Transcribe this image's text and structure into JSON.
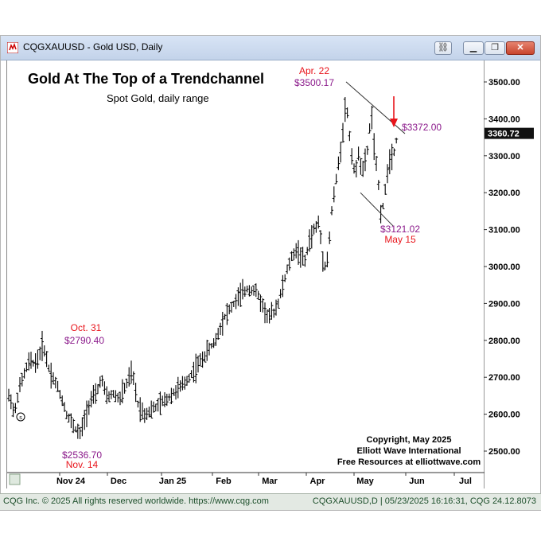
{
  "window": {
    "title": "CQGXAUUSD - Gold USD, Daily",
    "buttons": [
      "link-icon",
      "minimize-icon",
      "restore-icon",
      "close-icon"
    ]
  },
  "status": {
    "left": "CQG Inc. © 2025 All rights reserved worldwide. https://www.cqg.com",
    "right": "CQGXAUUSD,D | 05/23/2025 16:16:31, CQG 24.12.8073"
  },
  "chart_data": {
    "type": "ohlc",
    "title": "Gold At The Top of a Trendchannel",
    "subtitle": "Spot Gold, daily range",
    "ylim": [
      2450,
      3540
    ],
    "y_ticks": [
      "3500.00",
      "3400.00",
      "3300.00",
      "3200.00",
      "3100.00",
      "3000.00",
      "2900.00",
      "2800.00",
      "2700.00",
      "2600.00",
      "2500.00"
    ],
    "x_labels": [
      "Nov 24",
      "Dec",
      "Jan 25",
      "Feb",
      "Mar",
      "Apr",
      "May",
      "Jun",
      "Jul"
    ],
    "last_price": "3360.72",
    "annotations": {
      "oct_date": "Oct. 31",
      "oct_price": "$2790.40",
      "nov_price": "$2536.70",
      "nov_date": "Nov. 14",
      "apr_date": "Apr. 22",
      "apr_price": "$3500.17",
      "may_price": "$3121.02",
      "may_date": "May 15",
      "target_price": "$3372.00"
    },
    "copyright": [
      "Copyright, May 2025",
      "Elliott Wave International",
      "Free Resources at elliottwave.com"
    ],
    "colors": {
      "red": "#e8141b",
      "purple": "#8b1a8b",
      "bars": "#000000",
      "channel": "#333333"
    },
    "waypoints": [
      [
        0,
        2645
      ],
      [
        4,
        2650
      ],
      [
        9,
        2595
      ],
      [
        14,
        2660
      ],
      [
        20,
        2700
      ],
      [
        27,
        2740
      ],
      [
        37,
        2740
      ],
      [
        45,
        2790
      ],
      [
        53,
        2720
      ],
      [
        62,
        2680
      ],
      [
        69,
        2640
      ],
      [
        75,
        2600
      ],
      [
        80,
        2580
      ],
      [
        86,
        2560
      ],
      [
        92,
        2545
      ],
      [
        99,
        2600
      ],
      [
        105,
        2640
      ],
      [
        112,
        2650
      ],
      [
        118,
        2700
      ],
      [
        125,
        2645
      ],
      [
        134,
        2655
      ],
      [
        141,
        2640
      ],
      [
        150,
        2680
      ],
      [
        157,
        2715
      ],
      [
        164,
        2630
      ],
      [
        172,
        2600
      ],
      [
        180,
        2610
      ],
      [
        188,
        2620
      ],
      [
        200,
        2640
      ],
      [
        210,
        2660
      ],
      [
        222,
        2680
      ],
      [
        232,
        2710
      ],
      [
        242,
        2740
      ],
      [
        252,
        2770
      ],
      [
        262,
        2800
      ],
      [
        272,
        2860
      ],
      [
        282,
        2890
      ],
      [
        292,
        2920
      ],
      [
        302,
        2940
      ],
      [
        312,
        2935
      ],
      [
        320,
        2900
      ],
      [
        328,
        2860
      ],
      [
        336,
        2880
      ],
      [
        342,
        2910
      ],
      [
        348,
        2960
      ],
      [
        355,
        3010
      ],
      [
        362,
        3045
      ],
      [
        368,
        3035
      ],
      [
        374,
        3010
      ],
      [
        380,
        3070
      ],
      [
        386,
        3100
      ],
      [
        392,
        3120
      ],
      [
        398,
        3000
      ],
      [
        403,
        3020
      ],
      [
        408,
        3150
      ],
      [
        414,
        3240
      ],
      [
        420,
        3330
      ],
      [
        426,
        3450
      ],
      [
        432,
        3320
      ],
      [
        438,
        3240
      ],
      [
        442,
        3320
      ],
      [
        446,
        3250
      ],
      [
        452,
        3300
      ],
      [
        458,
        3420
      ],
      [
        462,
        3300
      ],
      [
        466,
        3240
      ],
      [
        470,
        3140
      ],
      [
        474,
        3180
      ],
      [
        478,
        3260
      ],
      [
        482,
        3300
      ],
      [
        486,
        3310
      ],
      [
        490,
        3350
      ]
    ],
    "channel": {
      "upper": [
        [
          426,
          3500.17
        ],
        [
          500,
          3360
        ]
      ],
      "lower": [
        [
          444,
          3200
        ],
        [
          485,
          3110
        ]
      ]
    }
  }
}
